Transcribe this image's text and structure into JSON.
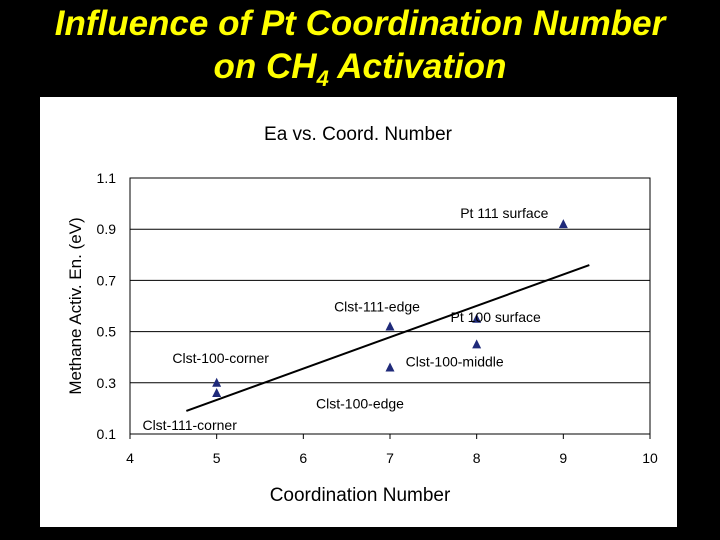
{
  "slide": {
    "title_line1": "Influence of Pt Coordination Number",
    "title_line2_pre": "on CH",
    "title_line2_sub": "4",
    "title_line2_post": " Activation"
  },
  "colors": {
    "background": "#000000",
    "title": "#ffff00",
    "marker": "#1f2a7a",
    "trendline": "#000000",
    "panel": "#ffffff"
  },
  "chart_data": {
    "type": "scatter",
    "title": "Ea vs. Coord. Number",
    "xlabel": "Coordination Number",
    "ylabel": "Methane Activ. En. (eV)",
    "xlim": [
      4,
      10
    ],
    "ylim": [
      0.1,
      1.1
    ],
    "xticks": [
      4,
      5,
      6,
      7,
      8,
      9,
      10
    ],
    "yticks": [
      0.1,
      0.3,
      0.5,
      0.7,
      0.9,
      1.1
    ],
    "ytick_labels": [
      "0.1",
      "0.3",
      "0.5",
      "0.7",
      "0.9",
      "1.1"
    ],
    "grid": "horizontal",
    "legend": "none",
    "marker": "triangle",
    "points": [
      {
        "x": 5,
        "y": 0.3,
        "label": "Clst-100-corner"
      },
      {
        "x": 5,
        "y": 0.26,
        "label": "Clst-111-corner"
      },
      {
        "x": 7,
        "y": 0.52,
        "label": "Clst-111-edge"
      },
      {
        "x": 7,
        "y": 0.36,
        "label": "Clst-100-edge"
      },
      {
        "x": 8,
        "y": 0.55,
        "label": "Pt 100 surface"
      },
      {
        "x": 8,
        "y": 0.45,
        "label": "Clst-100-middle"
      },
      {
        "x": 9,
        "y": 0.92,
        "label": "Pt 111 surface"
      }
    ],
    "trendline": {
      "x": [
        4.65,
        9.3
      ],
      "y": [
        0.19,
        0.76
      ]
    }
  }
}
